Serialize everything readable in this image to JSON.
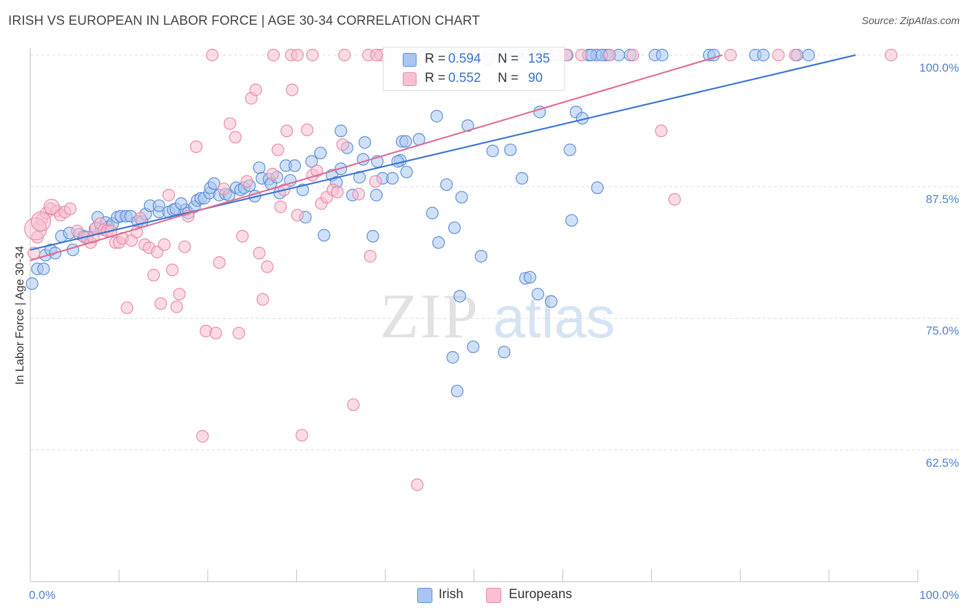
{
  "title": "IRISH VS EUROPEAN IN LABOR FORCE | AGE 30-34 CORRELATION CHART",
  "source": "Source: ZipAtlas.com",
  "watermark": {
    "zip": "ZIP",
    "atlas": "atlas"
  },
  "stats": {
    "irish": {
      "r_label": "R =",
      "r_value": "0.594",
      "n_label": "N =",
      "n_value": "135"
    },
    "europeans": {
      "r_label": "R =",
      "r_value": "0.552",
      "n_label": "N =",
      "n_value": "90"
    }
  },
  "legend": {
    "irish": "Irish",
    "europeans": "Europeans"
  },
  "colors": {
    "irish_fill": "#a9c6f0",
    "irish_stroke": "#5b8ed8",
    "irish_line": "#3a74d1",
    "europeans_fill": "#f8c0d0",
    "europeans_stroke": "#e88aa6",
    "europeans_line": "#e06b93",
    "tick_label": "#4a7fd4",
    "grid": "#dcdcdc"
  },
  "chart_data": {
    "type": "scatter",
    "title": "IRISH VS EUROPEAN IN LABOR FORCE | AGE 30-34 CORRELATION CHART",
    "xlabel": "",
    "ylabel": "In Labor Force | Age 30-34",
    "xlim": [
      0,
      100
    ],
    "ylim": [
      50,
      100
    ],
    "x_tick_labels": [
      "0.0%",
      "100.0%"
    ],
    "y_ticks": [
      62.5,
      75.0,
      87.5,
      100.0
    ],
    "y_tick_labels": [
      "62.5%",
      "75.0%",
      "87.5%",
      "100.0%"
    ],
    "grid": "horizontal dashed",
    "series": [
      {
        "name": "Irish",
        "trendline": {
          "x": [
            0,
            93
          ],
          "y": [
            81.5,
            100
          ]
        },
        "points": [
          [
            0.2,
            78.3
          ],
          [
            0.8,
            79.7
          ],
          [
            1.5,
            79.7
          ],
          [
            1.7,
            81.0
          ],
          [
            2.3,
            81.5
          ],
          [
            2.8,
            81.2
          ],
          [
            3.5,
            82.8
          ],
          [
            4.4,
            83.1
          ],
          [
            4.8,
            81.5
          ],
          [
            5.5,
            83.0
          ],
          [
            6.0,
            82.8
          ],
          [
            6.4,
            82.7
          ],
          [
            7.3,
            83.5
          ],
          [
            7.6,
            84.6
          ],
          [
            8.0,
            83.5
          ],
          [
            8.5,
            84.1
          ],
          [
            8.8,
            83.7
          ],
          [
            9.3,
            84.0
          ],
          [
            9.8,
            84.6
          ],
          [
            10.2,
            84.7
          ],
          [
            10.8,
            84.7
          ],
          [
            11.3,
            84.7
          ],
          [
            12.1,
            84.2
          ],
          [
            12.6,
            84.2
          ],
          [
            13.0,
            84.9
          ],
          [
            13.5,
            85.7
          ],
          [
            14.5,
            85.1
          ],
          [
            14.5,
            85.7
          ],
          [
            15.6,
            85.1
          ],
          [
            16.1,
            85.3
          ],
          [
            16.4,
            85.4
          ],
          [
            17.5,
            85.3
          ],
          [
            17.0,
            85.9
          ],
          [
            17.8,
            85.0
          ],
          [
            18.5,
            85.6
          ],
          [
            18.8,
            86.2
          ],
          [
            19.2,
            86.4
          ],
          [
            19.6,
            86.4
          ],
          [
            20.2,
            86.9
          ],
          [
            20.3,
            87.4
          ],
          [
            20.7,
            87.8
          ],
          [
            21.3,
            86.7
          ],
          [
            22.0,
            86.8
          ],
          [
            22.4,
            86.7
          ],
          [
            23.2,
            87.4
          ],
          [
            23.7,
            87.2
          ],
          [
            24.1,
            87.4
          ],
          [
            24.7,
            87.6
          ],
          [
            25.3,
            86.6
          ],
          [
            25.8,
            89.3
          ],
          [
            26.1,
            88.3
          ],
          [
            26.9,
            88.2
          ],
          [
            27.1,
            87.8
          ],
          [
            27.8,
            88.4
          ],
          [
            28.1,
            86.9
          ],
          [
            28.8,
            89.5
          ],
          [
            29.3,
            88.1
          ],
          [
            29.8,
            89.5
          ],
          [
            30.7,
            87.2
          ],
          [
            31.0,
            84.6
          ],
          [
            31.7,
            89.9
          ],
          [
            32.7,
            90.7
          ],
          [
            33.1,
            82.9
          ],
          [
            34.0,
            88.6
          ],
          [
            34.5,
            87.9
          ],
          [
            35.0,
            89.2
          ],
          [
            35.7,
            91.2
          ],
          [
            35.0,
            92.8
          ],
          [
            36.3,
            86.7
          ],
          [
            37.1,
            88.4
          ],
          [
            37.5,
            90.1
          ],
          [
            37.7,
            91.7
          ],
          [
            38.6,
            82.8
          ],
          [
            39.1,
            89.9
          ],
          [
            39.0,
            86.7
          ],
          [
            39.7,
            88.3
          ],
          [
            40.8,
            88.3
          ],
          [
            41.7,
            90.0
          ],
          [
            42.4,
            88.9
          ],
          [
            41.4,
            89.9
          ],
          [
            41.9,
            91.8
          ],
          [
            43.8,
            92.0
          ],
          [
            42.3,
            91.8
          ],
          [
            45.3,
            85.0
          ],
          [
            46.0,
            82.2
          ],
          [
            45.8,
            94.2
          ],
          [
            46.9,
            87.7
          ],
          [
            47.8,
            83.6
          ],
          [
            47.6,
            71.3
          ],
          [
            48.1,
            68.1
          ],
          [
            48.6,
            86.5
          ],
          [
            48.4,
            77.1
          ],
          [
            49.3,
            93.3
          ],
          [
            49.9,
            72.3
          ],
          [
            50.8,
            80.9
          ],
          [
            51.5,
            99.6
          ],
          [
            52.1,
            90.9
          ],
          [
            53.4,
            71.8
          ],
          [
            54.1,
            91.0
          ],
          [
            55.4,
            88.3
          ],
          [
            55.8,
            78.8
          ],
          [
            56.3,
            78.9
          ],
          [
            57.2,
            77.3
          ],
          [
            57.4,
            94.6
          ],
          [
            58.7,
            76.6
          ],
          [
            61.0,
            84.3
          ],
          [
            60.8,
            91.0
          ],
          [
            61.5,
            94.6
          ],
          [
            62.2,
            94.0
          ],
          [
            63.9,
            87.4
          ],
          [
            57.2,
            100
          ],
          [
            58.3,
            100
          ],
          [
            59.2,
            100
          ],
          [
            60.5,
            100
          ],
          [
            62.9,
            100
          ],
          [
            63.8,
            100
          ],
          [
            64.9,
            100
          ],
          [
            66.3,
            100
          ],
          [
            65.2,
            100
          ],
          [
            67.6,
            100
          ],
          [
            70.4,
            100
          ],
          [
            71.2,
            100
          ],
          [
            76.5,
            100
          ],
          [
            77.0,
            100
          ],
          [
            81.7,
            100
          ],
          [
            82.6,
            100
          ],
          [
            86.4,
            100
          ],
          [
            87.7,
            100
          ],
          [
            63.2,
            100
          ],
          [
            64.4,
            100
          ],
          [
            42.8,
            100
          ],
          [
            43.8,
            100
          ],
          [
            44.5,
            100
          ],
          [
            45.4,
            100
          ],
          [
            46.3,
            100
          ],
          [
            47.6,
            100
          ],
          [
            48.3,
            100
          ],
          [
            52.7,
            100
          ],
          [
            53.8,
            100
          ],
          [
            54.9,
            100
          ],
          [
            56.0,
            100
          ]
        ]
      },
      {
        "name": "Europeans",
        "trendline": {
          "x": [
            0,
            78
          ],
          "y": [
            80.5,
            100
          ]
        },
        "points": [
          [
            0.4,
            81.2
          ],
          [
            0.8,
            82.7
          ],
          [
            1.1,
            83.8
          ],
          [
            1.3,
            84.4
          ],
          [
            1.8,
            85.0
          ],
          [
            2.3,
            85.4
          ],
          [
            3.0,
            85.2
          ],
          [
            3.4,
            84.8
          ],
          [
            3.9,
            85.1
          ],
          [
            4.5,
            85.4
          ],
          [
            5.3,
            83.3
          ],
          [
            6.1,
            82.7
          ],
          [
            6.8,
            82.2
          ],
          [
            7.1,
            82.7
          ],
          [
            7.4,
            83.6
          ],
          [
            7.9,
            84.0
          ],
          [
            8.3,
            83.4
          ],
          [
            8.7,
            83.3
          ],
          [
            9.1,
            83.3
          ],
          [
            9.6,
            82.2
          ],
          [
            10.0,
            82.2
          ],
          [
            10.4,
            82.6
          ],
          [
            10.9,
            76.0
          ],
          [
            11.4,
            82.4
          ],
          [
            12.0,
            83.2
          ],
          [
            12.4,
            84.5
          ],
          [
            12.9,
            82.0
          ],
          [
            13.4,
            81.7
          ],
          [
            13.9,
            79.1
          ],
          [
            14.3,
            81.3
          ],
          [
            14.7,
            76.4
          ],
          [
            15.1,
            82.0
          ],
          [
            15.6,
            86.7
          ],
          [
            16.0,
            79.6
          ],
          [
            16.5,
            76.1
          ],
          [
            16.8,
            77.3
          ],
          [
            17.4,
            81.8
          ],
          [
            17.8,
            84.7
          ],
          [
            18.7,
            91.3
          ],
          [
            19.4,
            63.8
          ],
          [
            19.8,
            73.8
          ],
          [
            20.9,
            73.6
          ],
          [
            21.3,
            80.3
          ],
          [
            21.8,
            87.3
          ],
          [
            22.5,
            93.5
          ],
          [
            23.1,
            92.2
          ],
          [
            23.5,
            73.6
          ],
          [
            23.9,
            82.8
          ],
          [
            24.4,
            88.0
          ],
          [
            24.9,
            95.9
          ],
          [
            25.4,
            96.7
          ],
          [
            25.8,
            81.2
          ],
          [
            26.2,
            76.8
          ],
          [
            26.7,
            79.9
          ],
          [
            27.3,
            88.7
          ],
          [
            27.9,
            91.0
          ],
          [
            28.2,
            85.6
          ],
          [
            28.6,
            87.2
          ],
          [
            28.9,
            92.8
          ],
          [
            29.5,
            96.7
          ],
          [
            30.1,
            84.8
          ],
          [
            30.6,
            63.9
          ],
          [
            31.2,
            92.9
          ],
          [
            31.8,
            88.6
          ],
          [
            32.3,
            89.0
          ],
          [
            32.8,
            85.9
          ],
          [
            33.4,
            86.5
          ],
          [
            34.1,
            87.2
          ],
          [
            34.6,
            87.0
          ],
          [
            35.2,
            91.5
          ],
          [
            36.4,
            66.8
          ],
          [
            37.0,
            86.8
          ],
          [
            38.3,
            80.9
          ],
          [
            38.9,
            88.0
          ],
          [
            43.6,
            59.2
          ],
          [
            20.5,
            100
          ],
          [
            27.4,
            100
          ],
          [
            29.4,
            100
          ],
          [
            30.1,
            100
          ],
          [
            31.8,
            100
          ],
          [
            35.4,
            100
          ],
          [
            38.1,
            100
          ],
          [
            39.5,
            100
          ],
          [
            39.0,
            100
          ],
          [
            51.8,
            100
          ],
          [
            59.1,
            100
          ],
          [
            60.4,
            100
          ],
          [
            62.1,
            100
          ],
          [
            65.3,
            100
          ],
          [
            67.9,
            100
          ],
          [
            71.1,
            92.8
          ],
          [
            72.6,
            86.3
          ],
          [
            78.9,
            100
          ],
          [
            84.3,
            100
          ],
          [
            86.2,
            100
          ],
          [
            97.0,
            100
          ]
        ]
      }
    ]
  }
}
